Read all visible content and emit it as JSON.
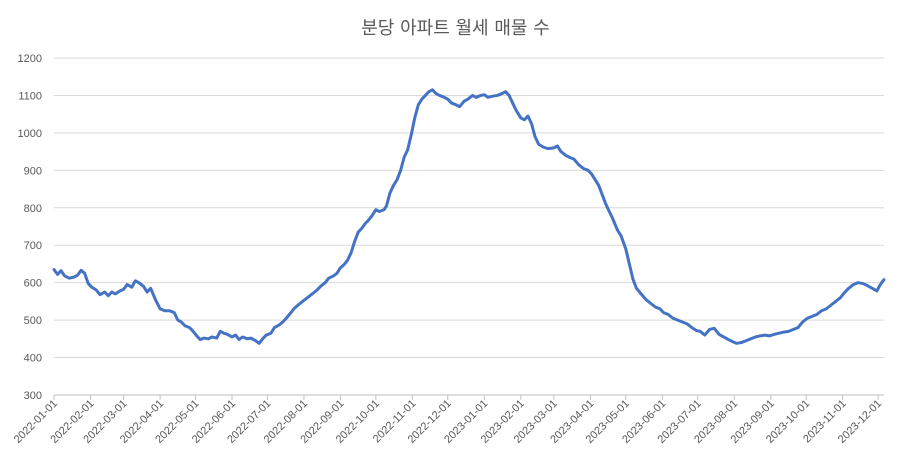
{
  "chart_data": {
    "type": "line",
    "title": "분당 아파트 월세 매물 수",
    "xlabel": "",
    "ylabel": "",
    "ylim": [
      300,
      1200
    ],
    "y_ticks": [
      300,
      400,
      500,
      600,
      700,
      800,
      900,
      1000,
      1100,
      1200
    ],
    "grid": true,
    "legend": "none",
    "color": "#4472c4",
    "x_ticks": [
      "2022-01-01",
      "2022-02-01",
      "2022-03-01",
      "2022-04-01",
      "2022-05-01",
      "2022-06-01",
      "2022-07-01",
      "2022-08-01",
      "2022-09-01",
      "2022-10-01",
      "2022-11-01",
      "2022-12-01",
      "2023-01-01",
      "2023-02-01",
      "2023-03-01",
      "2023-04-01",
      "2023-05-01",
      "2023-06-01",
      "2023-07-01",
      "2023-08-01",
      "2023-09-01",
      "2023-10-01",
      "2023-11-01",
      "2023-12-01"
    ],
    "x_range": [
      "2022-01-01",
      "2023-12-06"
    ],
    "series": [
      {
        "points": [
          [
            "2022-01-01",
            635
          ],
          [
            "2022-01-04",
            622
          ],
          [
            "2022-01-07",
            632
          ],
          [
            "2022-01-10",
            618
          ],
          [
            "2022-01-14",
            612
          ],
          [
            "2022-01-18",
            615
          ],
          [
            "2022-01-21",
            620
          ],
          [
            "2022-01-24",
            633
          ],
          [
            "2022-01-27",
            625
          ],
          [
            "2022-01-30",
            598
          ],
          [
            "2022-02-02",
            588
          ],
          [
            "2022-02-06",
            580
          ],
          [
            "2022-02-09",
            568
          ],
          [
            "2022-02-13",
            575
          ],
          [
            "2022-02-16",
            565
          ],
          [
            "2022-02-19",
            575
          ],
          [
            "2022-02-22",
            570
          ],
          [
            "2022-02-26",
            578
          ],
          [
            "2022-03-01",
            582
          ],
          [
            "2022-03-04",
            595
          ],
          [
            "2022-03-08",
            588
          ],
          [
            "2022-03-11",
            605
          ],
          [
            "2022-03-14",
            600
          ],
          [
            "2022-03-18",
            590
          ],
          [
            "2022-03-21",
            575
          ],
          [
            "2022-03-24",
            585
          ],
          [
            "2022-03-28",
            555
          ],
          [
            "2022-04-01",
            530
          ],
          [
            "2022-04-05",
            525
          ],
          [
            "2022-04-09",
            525
          ],
          [
            "2022-04-13",
            520
          ],
          [
            "2022-04-16",
            500
          ],
          [
            "2022-04-19",
            495
          ],
          [
            "2022-04-22",
            485
          ],
          [
            "2022-04-26",
            480
          ],
          [
            "2022-04-29",
            470
          ],
          [
            "2022-05-02",
            458
          ],
          [
            "2022-05-05",
            448
          ],
          [
            "2022-05-08",
            452
          ],
          [
            "2022-05-12",
            450
          ],
          [
            "2022-05-15",
            455
          ],
          [
            "2022-05-19",
            452
          ],
          [
            "2022-05-22",
            470
          ],
          [
            "2022-05-25",
            465
          ],
          [
            "2022-05-28",
            462
          ],
          [
            "2022-06-01",
            455
          ],
          [
            "2022-06-04",
            460
          ],
          [
            "2022-06-07",
            448
          ],
          [
            "2022-06-10",
            455
          ],
          [
            "2022-06-14",
            450
          ],
          [
            "2022-06-17",
            452
          ],
          [
            "2022-06-21",
            445
          ],
          [
            "2022-06-24",
            438
          ],
          [
            "2022-06-27",
            450
          ],
          [
            "2022-06-30",
            460
          ],
          [
            "2022-07-04",
            465
          ],
          [
            "2022-07-07",
            480
          ],
          [
            "2022-07-11",
            487
          ],
          [
            "2022-07-14",
            495
          ],
          [
            "2022-07-17",
            505
          ],
          [
            "2022-07-21",
            520
          ],
          [
            "2022-07-24",
            532
          ],
          [
            "2022-07-27",
            540
          ],
          [
            "2022-08-01",
            553
          ],
          [
            "2022-08-04",
            560
          ],
          [
            "2022-08-08",
            570
          ],
          [
            "2022-08-12",
            580
          ],
          [
            "2022-08-15",
            590
          ],
          [
            "2022-08-19",
            600
          ],
          [
            "2022-08-22",
            612
          ],
          [
            "2022-08-26",
            618
          ],
          [
            "2022-08-29",
            625
          ],
          [
            "2022-09-01",
            640
          ],
          [
            "2022-09-04",
            648
          ],
          [
            "2022-09-07",
            660
          ],
          [
            "2022-09-10",
            680
          ],
          [
            "2022-09-13",
            710
          ],
          [
            "2022-09-16",
            735
          ],
          [
            "2022-09-19",
            745
          ],
          [
            "2022-09-22",
            758
          ],
          [
            "2022-09-25",
            768
          ],
          [
            "2022-09-28",
            780
          ],
          [
            "2022-10-01",
            795
          ],
          [
            "2022-10-04",
            790
          ],
          [
            "2022-10-08",
            795
          ],
          [
            "2022-10-10",
            805
          ],
          [
            "2022-10-13",
            840
          ],
          [
            "2022-10-16",
            860
          ],
          [
            "2022-10-19",
            875
          ],
          [
            "2022-10-22",
            900
          ],
          [
            "2022-10-25",
            935
          ],
          [
            "2022-10-28",
            955
          ],
          [
            "2022-10-31",
            995
          ],
          [
            "2022-11-03",
            1040
          ],
          [
            "2022-11-06",
            1075
          ],
          [
            "2022-11-09",
            1090
          ],
          [
            "2022-11-12",
            1100
          ],
          [
            "2022-11-15",
            1110
          ],
          [
            "2022-11-18",
            1115
          ],
          [
            "2022-11-21",
            1105
          ],
          [
            "2022-11-24",
            1100
          ],
          [
            "2022-11-28",
            1095
          ],
          [
            "2022-12-01",
            1090
          ],
          [
            "2022-12-04",
            1080
          ],
          [
            "2022-12-08",
            1075
          ],
          [
            "2022-12-11",
            1070
          ],
          [
            "2022-12-15",
            1085
          ],
          [
            "2022-12-18",
            1090
          ],
          [
            "2022-12-22",
            1100
          ],
          [
            "2022-12-25",
            1095
          ],
          [
            "2022-12-29",
            1100
          ],
          [
            "2023-01-01",
            1102
          ],
          [
            "2023-01-04",
            1095
          ],
          [
            "2023-01-08",
            1098
          ],
          [
            "2023-01-12",
            1100
          ],
          [
            "2023-01-16",
            1105
          ],
          [
            "2023-01-19",
            1110
          ],
          [
            "2023-01-22",
            1100
          ],
          [
            "2023-01-25",
            1080
          ],
          [
            "2023-01-28",
            1060
          ],
          [
            "2023-02-01",
            1040
          ],
          [
            "2023-02-04",
            1035
          ],
          [
            "2023-02-07",
            1045
          ],
          [
            "2023-02-10",
            1025
          ],
          [
            "2023-02-13",
            990
          ],
          [
            "2023-02-16",
            970
          ],
          [
            "2023-02-20",
            962
          ],
          [
            "2023-02-24",
            958
          ],
          [
            "2023-03-01",
            960
          ],
          [
            "2023-03-04",
            965
          ],
          [
            "2023-03-07",
            950
          ],
          [
            "2023-03-11",
            940
          ],
          [
            "2023-03-14",
            935
          ],
          [
            "2023-03-18",
            930
          ],
          [
            "2023-03-22",
            915
          ],
          [
            "2023-03-26",
            905
          ],
          [
            "2023-03-30",
            900
          ],
          [
            "2023-04-02",
            890
          ],
          [
            "2023-04-05",
            875
          ],
          [
            "2023-04-08",
            860
          ],
          [
            "2023-04-11",
            835
          ],
          [
            "2023-04-14",
            810
          ],
          [
            "2023-04-17",
            790
          ],
          [
            "2023-04-20",
            770
          ],
          [
            "2023-04-24",
            740
          ],
          [
            "2023-04-27",
            725
          ],
          [
            "2023-05-01",
            690
          ],
          [
            "2023-05-04",
            650
          ],
          [
            "2023-05-07",
            610
          ],
          [
            "2023-05-10",
            585
          ],
          [
            "2023-05-14",
            570
          ],
          [
            "2023-05-18",
            555
          ],
          [
            "2023-05-22",
            545
          ],
          [
            "2023-05-26",
            535
          ],
          [
            "2023-05-30",
            530
          ],
          [
            "2023-06-02",
            520
          ],
          [
            "2023-06-06",
            515
          ],
          [
            "2023-06-10",
            505
          ],
          [
            "2023-06-14",
            500
          ],
          [
            "2023-06-18",
            495
          ],
          [
            "2023-06-22",
            490
          ],
          [
            "2023-06-26",
            480
          ],
          [
            "2023-06-30",
            472
          ],
          [
            "2023-07-03",
            470
          ],
          [
            "2023-07-07",
            460
          ],
          [
            "2023-07-11",
            475
          ],
          [
            "2023-07-15",
            478
          ],
          [
            "2023-07-19",
            462
          ],
          [
            "2023-07-23",
            455
          ],
          [
            "2023-07-27",
            448
          ],
          [
            "2023-07-31",
            442
          ],
          [
            "2023-08-03",
            438
          ],
          [
            "2023-08-07",
            440
          ],
          [
            "2023-08-11",
            445
          ],
          [
            "2023-08-15",
            450
          ],
          [
            "2023-08-19",
            455
          ],
          [
            "2023-08-23",
            458
          ],
          [
            "2023-08-27",
            460
          ],
          [
            "2023-08-31",
            458
          ],
          [
            "2023-09-04",
            462
          ],
          [
            "2023-09-08",
            465
          ],
          [
            "2023-09-12",
            468
          ],
          [
            "2023-09-16",
            470
          ],
          [
            "2023-09-20",
            475
          ],
          [
            "2023-09-24",
            480
          ],
          [
            "2023-09-28",
            495
          ],
          [
            "2023-10-02",
            505
          ],
          [
            "2023-10-06",
            510
          ],
          [
            "2023-10-10",
            515
          ],
          [
            "2023-10-14",
            525
          ],
          [
            "2023-10-18",
            530
          ],
          [
            "2023-10-22",
            540
          ],
          [
            "2023-10-26",
            550
          ],
          [
            "2023-10-30",
            560
          ],
          [
            "2023-11-02",
            572
          ],
          [
            "2023-11-06",
            585
          ],
          [
            "2023-11-10",
            595
          ],
          [
            "2023-11-14",
            600
          ],
          [
            "2023-11-18",
            598
          ],
          [
            "2023-11-22",
            592
          ],
          [
            "2023-11-26",
            585
          ],
          [
            "2023-11-30",
            578
          ],
          [
            "2023-12-02",
            590
          ],
          [
            "2023-12-04",
            600
          ],
          [
            "2023-12-06",
            608
          ]
        ]
      }
    ]
  }
}
